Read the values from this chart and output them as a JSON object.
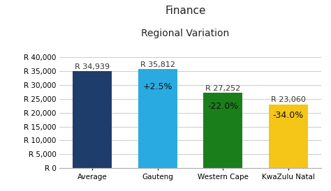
{
  "title": "Finance",
  "subtitle": "Regional Variation",
  "categories": [
    "Average",
    "Gauteng",
    "Western Cape",
    "KwaZulu Natal"
  ],
  "values": [
    34939,
    35812,
    27252,
    23060
  ],
  "bar_colors": [
    "#1F3D6B",
    "#29ABE2",
    "#1A7F1A",
    "#F5C518"
  ],
  "value_labels": [
    "R 34,939",
    "R 35,812",
    "R 27,252",
    "R 23,060"
  ],
  "pct_labels": [
    "",
    "+2.5%",
    "-22.0%",
    "-34.0%"
  ],
  "pct_label_color": "#222222",
  "ylim": [
    0,
    40000
  ],
  "ytick_step": 5000,
  "background_color": "#FFFFFF",
  "grid_color": "#CCCCCC",
  "title_fontsize": 11,
  "subtitle_fontsize": 10,
  "label_fontsize": 8,
  "pct_fontsize": 9,
  "tick_fontsize": 7.5,
  "bar_width": 0.6
}
